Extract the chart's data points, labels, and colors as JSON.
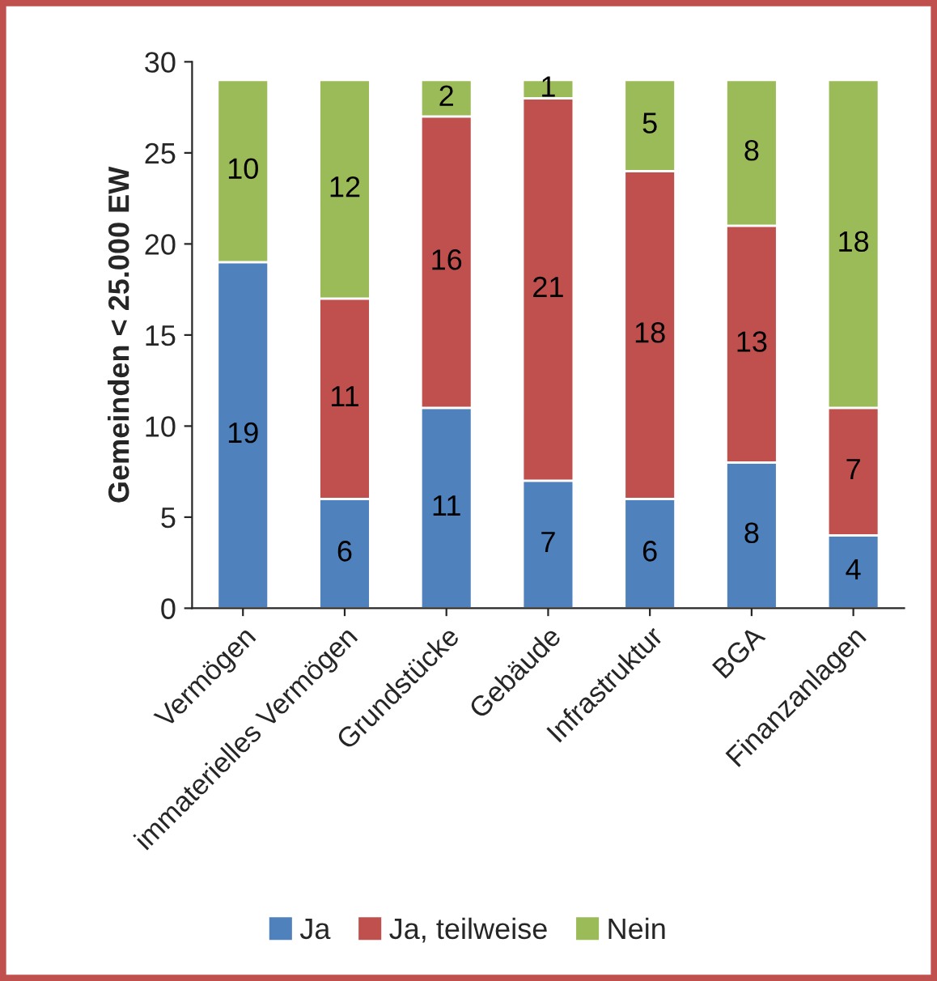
{
  "chart_data": {
    "type": "bar",
    "stacked": true,
    "ylabel": "Gemeinden < 25.000 EW",
    "categories": [
      "Vermögen",
      "immaterielles Vermögen",
      "Grundstücke",
      "Gebäude",
      "Infrastruktur",
      "BGA",
      "Finanzanlagen"
    ],
    "series": [
      {
        "name": "Ja",
        "color": "#4f81bd",
        "values": [
          19,
          6,
          11,
          7,
          6,
          8,
          4
        ]
      },
      {
        "name": "Ja, teilweise",
        "color": "#c0504d",
        "values": [
          null,
          11,
          16,
          21,
          18,
          13,
          7
        ]
      },
      {
        "name": "Nein",
        "color": "#9bbb59",
        "values": [
          10,
          12,
          2,
          1,
          5,
          8,
          18
        ]
      }
    ],
    "ylim": [
      0,
      30
    ],
    "yticks": [
      0,
      5,
      10,
      15,
      20,
      25,
      30
    ],
    "grid": false,
    "legend": "bottom",
    "data_labels": true
  }
}
